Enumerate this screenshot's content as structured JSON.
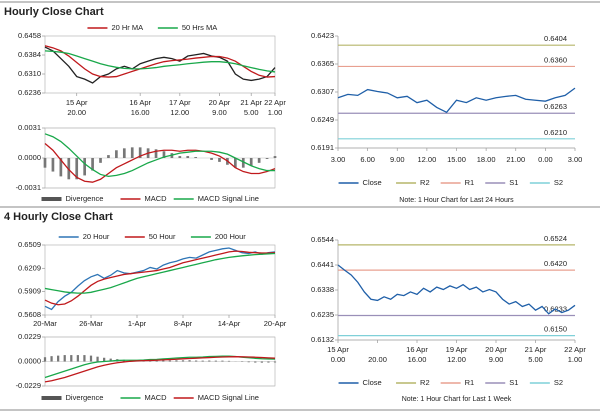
{
  "sections": [
    "Hourly Close Chart",
    "4 Hourly Close Chart"
  ],
  "chart_data": [
    {
      "type": "line",
      "ylim": [
        0.6236,
        0.6458
      ],
      "yticks": [
        0.6236,
        {
          "value": 0.631,
          "label": "0.6310"
        },
        0.6384,
        0.6458
      ],
      "categories": [
        null,
        null,
        null,
        null,
        [
          "15 Apr",
          "20.00"
        ],
        null,
        null,
        null,
        null,
        null,
        null,
        null,
        [
          "16 Apr",
          "16.00"
        ],
        null,
        null,
        null,
        null,
        [
          "17 Apr",
          "12.00"
        ],
        null,
        null,
        null,
        null,
        [
          "20 Apr",
          "9.00"
        ],
        null,
        null,
        null,
        [
          "21 Apr",
          "5.00"
        ],
        null,
        null,
        [
          "22 Apr",
          "1.00"
        ]
      ],
      "legend": "top",
      "series": [
        {
          "color": "#222222",
          "values": [
            0.6415,
            0.64,
            0.637,
            0.634,
            0.63,
            0.629,
            0.6275,
            0.63,
            0.631,
            0.633,
            0.634,
            0.633,
            0.635,
            0.636,
            0.637,
            0.6375,
            0.637,
            0.636,
            0.638,
            0.6385,
            0.639,
            0.638,
            0.6375,
            0.636,
            0.631,
            0.629,
            0.6285,
            0.629,
            0.63,
            0.6335
          ]
        },
        {
          "name": "20 Hr MA",
          "color": "#c0191c",
          "values": [
            0.642,
            0.6412,
            0.64,
            0.638,
            0.6355,
            0.633,
            0.631,
            0.63,
            0.6298,
            0.63,
            0.631,
            0.632,
            0.633,
            0.634,
            0.635,
            0.6358,
            0.6362,
            0.6365,
            0.6368,
            0.6372,
            0.6375,
            0.6378,
            0.6378,
            0.6372,
            0.636,
            0.634,
            0.632,
            0.6305,
            0.6298,
            0.63
          ]
        },
        {
          "name": "50 Hrs MA",
          "color": "#19a84a",
          "values": [
            0.64,
            0.6398,
            0.6395,
            0.639,
            0.638,
            0.637,
            0.636,
            0.635,
            0.6342,
            0.6336,
            0.6332,
            0.633,
            0.633,
            0.6332,
            0.6335,
            0.634,
            0.6343,
            0.6346,
            0.635,
            0.6353,
            0.6356,
            0.6358,
            0.6358,
            0.6355,
            0.635,
            0.6342,
            0.6335,
            0.6328,
            0.6322,
            0.6318
          ]
        }
      ]
    },
    {
      "type": "line",
      "ylim": [
        -0.0031,
        0.0031
      ],
      "yticks": [
        -0.0031,
        {
          "value": 0,
          "label": "0.0000"
        },
        0.0031
      ],
      "grid": true,
      "legend": "bottom",
      "series": [
        {
          "name": "Divergence",
          "kind": "bar",
          "color": "#777777",
          "values": [
            -0.001,
            -0.0014,
            -0.0019,
            -0.0022,
            -0.0022,
            -0.0018,
            -0.0013,
            -0.0005,
            0.0003,
            0.0008,
            0.001,
            0.0011,
            0.0011,
            0.001,
            0.0009,
            0.0007,
            0.0005,
            0.0002,
            0.0002,
            0.0001,
            0,
            -0.0002,
            -0.0004,
            -0.0007,
            -0.001,
            -0.001,
            -0.0008,
            -0.0005,
            -0.0001,
            0.0002
          ]
        },
        {
          "name": "MACD",
          "color": "#c0191c",
          "values": [
            0.0015,
            0.0008,
            -0.0002,
            -0.0012,
            -0.002,
            -0.0024,
            -0.0025,
            -0.0022,
            -0.0016,
            -0.001,
            -0.0006,
            -0.0002,
            0.0002,
            0.0005,
            0.0007,
            0.0008,
            0.0008,
            0.0007,
            0.0008,
            0.0008,
            0.0007,
            0.0005,
            0.0002,
            -0.0003,
            -0.001,
            -0.0014,
            -0.0016,
            -0.0016,
            -0.0014,
            -0.0011
          ]
        },
        {
          "name": "MACD Signal Line",
          "color": "#19a84a",
          "values": [
            0.0025,
            0.0022,
            0.0017,
            0.001,
            0.0002,
            -0.0006,
            -0.0012,
            -0.0017,
            -0.0019,
            -0.0018,
            -0.0016,
            -0.0013,
            -0.0009,
            -0.0005,
            -0.0002,
            0.0001,
            0.0003,
            0.0005,
            0.0006,
            0.0007,
            0.0007,
            0.0007,
            0.0006,
            0.0004,
            0.0,
            -0.0004,
            -0.0008,
            -0.0011,
            -0.0013,
            -0.0013
          ]
        }
      ]
    },
    {
      "type": "line",
      "ylim": [
        0.6191,
        0.6423
      ],
      "yticks": [
        0.6191,
        0.6249,
        0.6307,
        0.6365,
        0.6423
      ],
      "legend": "bottom",
      "categories": [
        "3.00",
        null,
        null,
        "6.00",
        null,
        null,
        "9.00",
        null,
        null,
        "12.00",
        null,
        null,
        "15.00",
        null,
        null,
        "18.00",
        null,
        null,
        "21.00",
        null,
        null,
        "0.00",
        null,
        null,
        "3.00"
      ],
      "series": [
        {
          "name": "Close",
          "color": "#1f5fa8",
          "values": [
            0.6295,
            0.6302,
            0.63,
            0.6312,
            0.6308,
            0.6305,
            0.6295,
            0.6298,
            0.6285,
            0.629,
            0.6275,
            0.6265,
            0.629,
            0.6285,
            0.6295,
            0.629,
            0.6295,
            0.6298,
            0.63,
            0.6292,
            0.629,
            0.6288,
            0.6295,
            0.63,
            0.6315
          ]
        }
      ],
      "levels": [
        {
          "name": "R2",
          "color": "#b5b56a",
          "value": 0.6404
        },
        {
          "name": "R1",
          "color": "#e8a090",
          "value": 0.636,
          "label": "0.6360"
        },
        {
          "name": "S1",
          "color": "#9a8fb8",
          "value": 0.6263
        },
        {
          "name": "S2",
          "color": "#7fd0d8",
          "value": 0.621,
          "label": "0.6210"
        }
      ],
      "note": "Note: 1 Hour Chart for Last 24 Hours"
    },
    {
      "type": "line",
      "ylim": [
        0.5608,
        0.6509
      ],
      "yticks": [
        0.5608,
        0.5909,
        0.6209,
        0.6509
      ],
      "legend": "top",
      "categories": [
        "20-Mar",
        null,
        null,
        null,
        null,
        null,
        null,
        "26-Mar",
        null,
        null,
        null,
        null,
        null,
        null,
        "1-Apr",
        null,
        null,
        null,
        null,
        null,
        null,
        "8-Apr",
        null,
        null,
        null,
        null,
        null,
        null,
        "14-Apr",
        null,
        null,
        null,
        null,
        null,
        null,
        "20-Apr"
      ],
      "series": [
        {
          "name": "20 Hour",
          "color": "#2e75b6",
          "values": [
            0.572,
            0.568,
            0.578,
            0.585,
            0.59,
            0.598,
            0.605,
            0.61,
            0.613,
            0.608,
            0.612,
            0.618,
            0.615,
            0.614,
            0.616,
            0.618,
            0.622,
            0.62,
            0.625,
            0.628,
            0.63,
            0.633,
            0.635,
            0.634,
            0.638,
            0.642,
            0.644,
            0.646,
            0.647,
            0.644,
            0.641,
            0.64,
            0.642,
            0.639,
            0.641,
            0.642
          ]
        },
        {
          "name": "50 Hour",
          "color": "#c0191c",
          "values": [
            0.58,
            0.576,
            0.574,
            0.575,
            0.579,
            0.585,
            0.592,
            0.599,
            0.604,
            0.607,
            0.609,
            0.611,
            0.613,
            0.614,
            0.615,
            0.616,
            0.617,
            0.618,
            0.62,
            0.622,
            0.625,
            0.628,
            0.63,
            0.632,
            0.634,
            0.636,
            0.638,
            0.64,
            0.642,
            0.643,
            0.6425,
            0.6415,
            0.641,
            0.6405,
            0.6405,
            0.641
          ]
        },
        {
          "name": "200 Hour",
          "color": "#19a84a",
          "values": [
            0.595,
            0.5935,
            0.592,
            0.5905,
            0.5895,
            0.589,
            0.589,
            0.59,
            0.592,
            0.594,
            0.596,
            0.599,
            0.602,
            0.605,
            0.608,
            0.61,
            0.612,
            0.614,
            0.616,
            0.618,
            0.62,
            0.622,
            0.624,
            0.626,
            0.628,
            0.63,
            0.632,
            0.6335,
            0.635,
            0.636,
            0.637,
            0.6378,
            0.6385,
            0.639,
            0.6395,
            0.64
          ]
        }
      ]
    },
    {
      "type": "line",
      "ylim": [
        -0.0229,
        0.0229
      ],
      "yticks": [
        -0.0229,
        {
          "value": 0,
          "label": "0.0000"
        },
        0.0229
      ],
      "grid": true,
      "legend": "bottom",
      "series": [
        {
          "name": "Divergence",
          "kind": "bar",
          "color": "#777777",
          "values": [
            0.004,
            0.005,
            0.0055,
            0.006,
            0.006,
            0.006,
            0.006,
            0.0055,
            0.0045,
            0.0035,
            0.0027,
            0.0022,
            0.0016,
            0.001,
            0.0006,
            0.0006,
            0.0008,
            0.0008,
            0.0009,
            0.001,
            0.0011,
            0.0011,
            0.0012,
            0.0009,
            0.0008,
            0.0009,
            0.0008,
            0.0008,
            0.0006,
            0.0001,
            -0.0004,
            -0.0007,
            -0.001,
            -0.0011,
            -0.001,
            -0.0009
          ]
        },
        {
          "name": "MACD",
          "color": "#19a84a",
          "values": [
            -0.015,
            -0.013,
            -0.011,
            -0.009,
            -0.007,
            -0.005,
            -0.003,
            -0.0015,
            -0.0005,
            0.0,
            0.0005,
            0.001,
            0.0012,
            0.0012,
            0.0012,
            0.0014,
            0.0018,
            0.002,
            0.0024,
            0.0028,
            0.0032,
            0.0036,
            0.004,
            0.004,
            0.0042,
            0.0046,
            0.0048,
            0.005,
            0.005,
            0.0046,
            0.004,
            0.0035,
            0.003,
            0.0026,
            0.0024,
            0.0022
          ]
        },
        {
          "name": "MACD Signal Line",
          "color": "#c0191c",
          "values": [
            -0.019,
            -0.018,
            -0.0165,
            -0.015,
            -0.013,
            -0.011,
            -0.009,
            -0.007,
            -0.005,
            -0.0035,
            -0.0022,
            -0.0012,
            -0.0004,
            0.0002,
            0.0006,
            0.0008,
            0.001,
            0.0012,
            0.0015,
            0.0018,
            0.0021,
            0.0025,
            0.0028,
            0.0031,
            0.0034,
            0.0037,
            0.004,
            0.0042,
            0.0044,
            0.0045,
            0.0044,
            0.0042,
            0.004,
            0.0037,
            0.0034,
            0.0031
          ]
        }
      ]
    },
    {
      "type": "line",
      "ylim": [
        0.6132,
        0.6544
      ],
      "yticks": [
        0.6132,
        0.6235,
        0.6338,
        0.6441,
        0.6544
      ],
      "legend": "bottom",
      "categories": [
        [
          "15 Apr",
          "0.00"
        ],
        null,
        null,
        null,
        null,
        null,
        [
          null,
          "20.00"
        ],
        null,
        null,
        null,
        null,
        null,
        [
          "16 Apr",
          "16.00"
        ],
        null,
        null,
        null,
        null,
        null,
        [
          "19 Apr",
          "12.00"
        ],
        null,
        null,
        null,
        null,
        null,
        [
          "20 Apr",
          "9.00"
        ],
        null,
        null,
        null,
        null,
        null,
        [
          "21 Apr",
          "5.00"
        ],
        null,
        null,
        null,
        null,
        null,
        [
          "22 Apr",
          "1.00"
        ]
      ],
      "series": [
        {
          "name": "Close",
          "color": "#1f5fa8",
          "values": [
            0.6441,
            0.642,
            0.64,
            0.637,
            0.633,
            0.63,
            0.6295,
            0.631,
            0.63,
            0.632,
            0.6315,
            0.633,
            0.632,
            0.6345,
            0.633,
            0.635,
            0.634,
            0.6355,
            0.6345,
            0.636,
            0.634,
            0.635,
            0.633,
            0.634,
            0.633,
            0.63,
            0.628,
            0.629,
            0.627,
            0.628,
            0.6255,
            0.627,
            0.624,
            0.626,
            0.6245,
            0.6255,
            0.6275
          ]
        }
      ],
      "levels": [
        {
          "name": "R2",
          "color": "#b5b56a",
          "value": 0.6524
        },
        {
          "name": "R1",
          "color": "#e8a090",
          "value": 0.642,
          "label": "0.6420"
        },
        {
          "name": "S1",
          "color": "#9a8fb8",
          "value": 0.6233
        },
        {
          "name": "S2",
          "color": "#7fd0d8",
          "value": 0.615,
          "label": "0.6150"
        }
      ],
      "note": "Note: 1 Hour Chart for Last 1 Week"
    }
  ]
}
